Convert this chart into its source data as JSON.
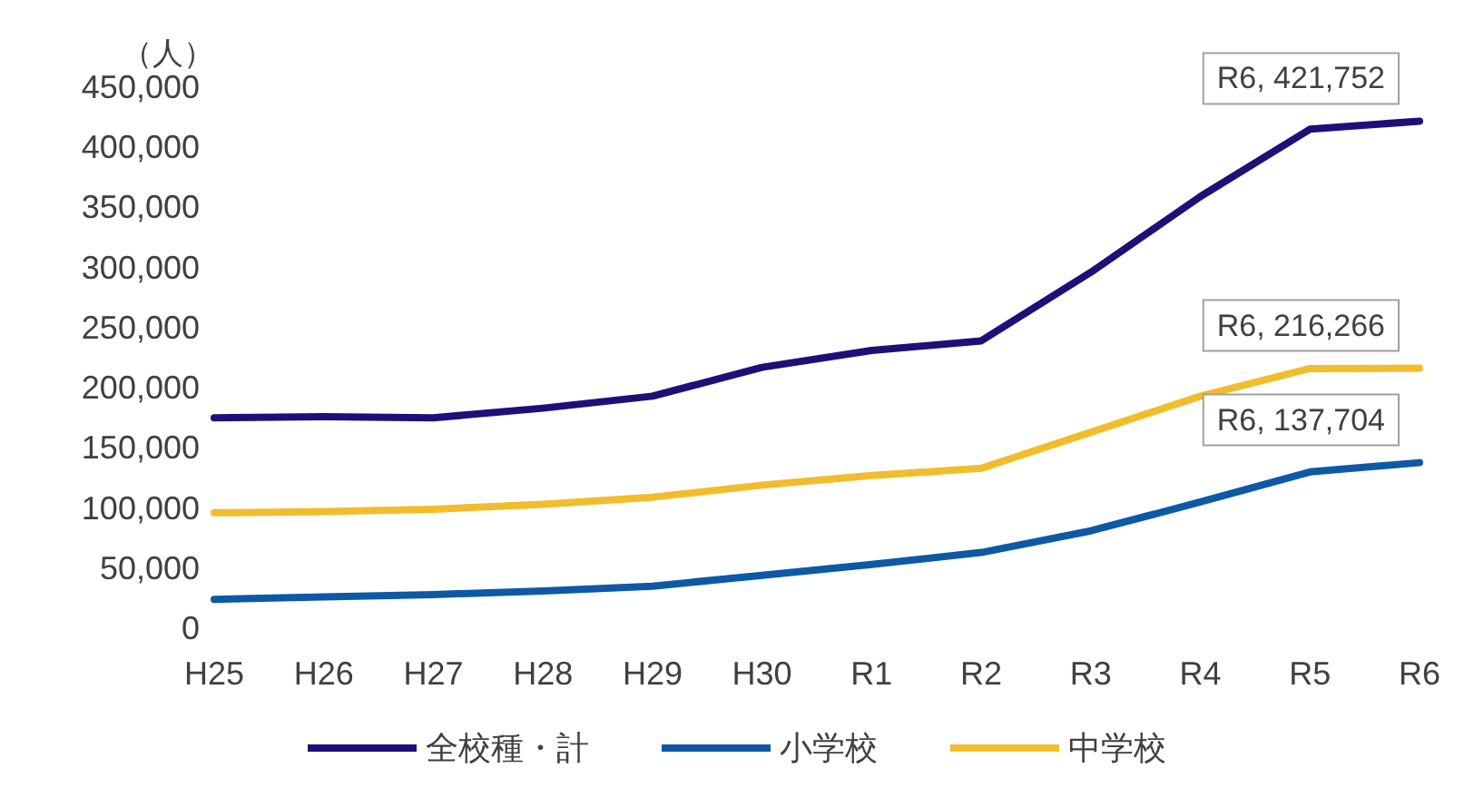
{
  "chart_data": {
    "type": "line",
    "ylabel": "（人）",
    "categories": [
      "H25",
      "H26",
      "H27",
      "H28",
      "H29",
      "H30",
      "R1",
      "R2",
      "R3",
      "R4",
      "R5",
      "R6"
    ],
    "series": [
      {
        "name": "全校種・計",
        "color": "#1f0f78",
        "values": [
          175000,
          176000,
          175000,
          183000,
          193000,
          217000,
          231000,
          239000,
          296000,
          359000,
          415000,
          421752
        ],
        "value_labels": [
          null,
          null,
          null,
          null,
          null,
          null,
          null,
          null,
          null,
          null,
          null,
          "R6, 421,752"
        ]
      },
      {
        "name": "小学校",
        "color": "#0d59a6",
        "values": [
          24000,
          26000,
          28000,
          31000,
          35000,
          44000,
          53000,
          63000,
          81000,
          105000,
          130000,
          137704
        ],
        "value_labels": [
          null,
          null,
          null,
          null,
          null,
          null,
          null,
          null,
          null,
          null,
          null,
          "R6, 137,704"
        ]
      },
      {
        "name": "中学校",
        "color": "#f2bd2c",
        "values": [
          96000,
          97000,
          99000,
          103000,
          109000,
          119000,
          127000,
          133000,
          163000,
          193000,
          216000,
          216266
        ],
        "value_labels": [
          null,
          null,
          null,
          null,
          null,
          null,
          null,
          null,
          null,
          null,
          null,
          "R6, 216,266"
        ]
      }
    ],
    "ylim": [
      0,
      450000
    ],
    "yticks": [
      0,
      {
        "value": 50000,
        "label": "50,000"
      },
      {
        "value": 100000,
        "label": "100,000"
      },
      {
        "value": 150000,
        "label": "150,000"
      },
      {
        "value": 200000,
        "label": "200,000"
      },
      {
        "value": 250000,
        "label": "250,000"
      },
      {
        "value": 300000,
        "label": "300,000"
      },
      {
        "value": 350000,
        "label": "350,000"
      },
      {
        "value": 400000,
        "label": "400,000"
      },
      {
        "value": 450000,
        "label": "450,000"
      }
    ],
    "legend": "bottom"
  }
}
